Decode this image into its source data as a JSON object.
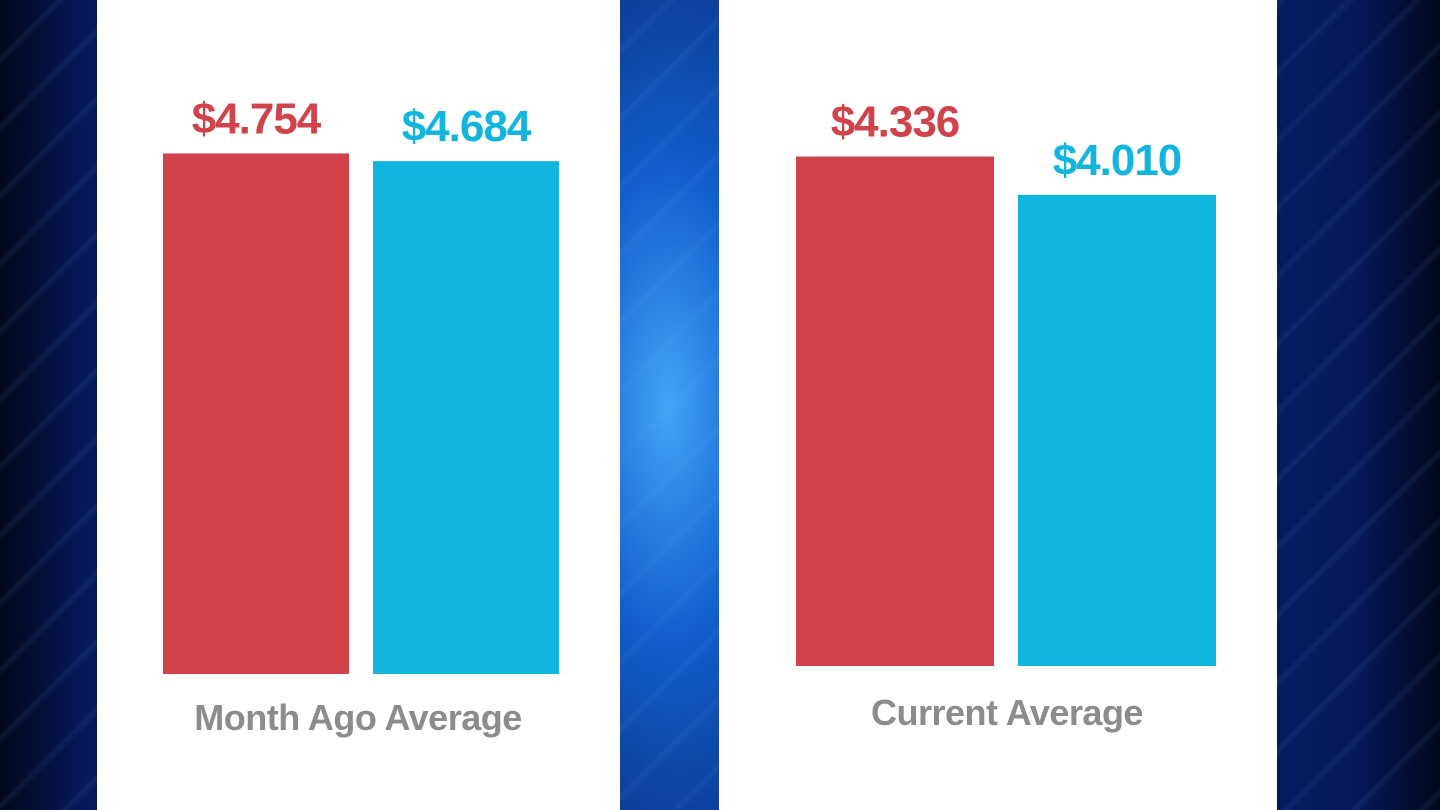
{
  "colors": {
    "red": "#d0434a",
    "blue": "#12b5de",
    "category_text": "#8c8c8c",
    "panel": "#ffffff"
  },
  "chart_data": [
    {
      "type": "bar",
      "categories": [
        "Month Ago Average"
      ],
      "series": [
        {
          "values": [
            4.754
          ],
          "color": "#d0434a",
          "data_label": "$4.754"
        },
        {
          "values": [
            4.684
          ],
          "color": "#12b5de",
          "data_label": "$4.684"
        }
      ],
      "xlabel": "",
      "ylabel": "",
      "grid": false
    },
    {
      "type": "bar",
      "categories": [
        "Current Average"
      ],
      "series": [
        {
          "values": [
            4.336
          ],
          "color": "#d0434a",
          "data_label": "$4.336"
        },
        {
          "values": [
            4.01
          ],
          "color": "#12b5de",
          "data_label": "$4.010"
        }
      ],
      "xlabel": "",
      "ylabel": "",
      "grid": false
    }
  ]
}
